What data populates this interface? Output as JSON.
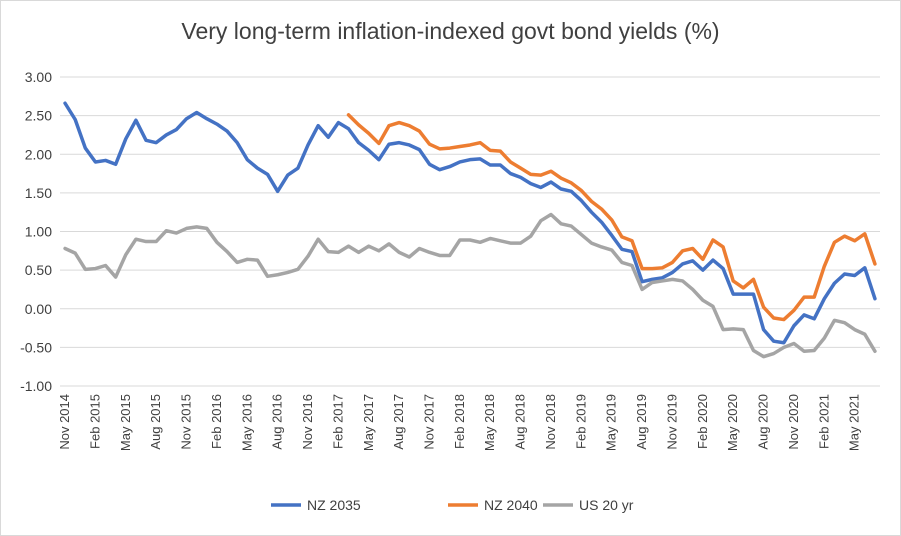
{
  "chart_data": {
    "type": "line",
    "title": "Very long-term inflation-indexed govt bond yields (%)",
    "xlabel": "",
    "ylabel": "",
    "ylim": [
      -1.0,
      3.0
    ],
    "y_ticks": [
      "3.00",
      "2.50",
      "2.00",
      "1.50",
      "1.00",
      "0.50",
      "0.00",
      "-0.50",
      "-1.00"
    ],
    "y_tick_values": [
      3.0,
      2.5,
      2.0,
      1.5,
      1.0,
      0.5,
      0.0,
      -0.5,
      -1.0
    ],
    "x_tick_labels": [
      "Nov 2014",
      "Feb 2015",
      "May 2015",
      "Aug 2015",
      "Nov 2015",
      "Feb 2016",
      "May 2016",
      "Aug 2016",
      "Nov 2016",
      "Feb 2017",
      "May 2017",
      "Aug 2017",
      "Nov 2017",
      "Feb 2018",
      "May 2018",
      "Aug 2018",
      "Nov 2018",
      "Feb 2019",
      "May 2019",
      "Aug 2019",
      "Nov 2019",
      "Feb 2020",
      "May 2020",
      "Aug 2020",
      "Nov 2020",
      "Feb 2021",
      "May 2021"
    ],
    "x_tick_month_index": [
      0,
      3,
      6,
      9,
      12,
      15,
      18,
      21,
      24,
      27,
      30,
      33,
      36,
      39,
      42,
      45,
      48,
      51,
      54,
      57,
      60,
      63,
      66,
      69,
      72,
      75,
      78
    ],
    "n_months": 81,
    "gridlines": true,
    "legend_position": "bottom",
    "series": [
      {
        "name": "NZ 2035",
        "color": "#4472c4",
        "start_index": 0,
        "values": [
          2.66,
          2.45,
          2.08,
          1.9,
          1.92,
          1.87,
          2.2,
          2.44,
          2.18,
          2.15,
          2.25,
          2.32,
          2.46,
          2.54,
          2.46,
          2.39,
          2.3,
          2.15,
          1.93,
          1.82,
          1.74,
          1.52,
          1.73,
          1.82,
          2.12,
          2.37,
          2.22,
          2.41,
          2.33,
          2.15,
          2.05,
          1.93,
          2.13,
          2.15,
          2.12,
          2.06,
          1.87,
          1.8,
          1.84,
          1.9,
          1.93,
          1.94,
          1.86,
          1.86,
          1.75,
          1.7,
          1.62,
          1.57,
          1.64,
          1.55,
          1.52,
          1.4,
          1.25,
          1.12,
          0.95,
          0.77,
          0.74,
          0.35,
          0.38,
          0.4,
          0.47,
          0.58,
          0.62,
          0.5,
          0.63,
          0.52,
          0.19,
          0.19,
          0.19,
          -0.27,
          -0.42,
          -0.44,
          -0.22,
          -0.08,
          -0.13,
          0.13,
          0.33,
          0.45,
          0.43,
          0.53,
          0.13
        ]
      },
      {
        "name": "NZ 2040",
        "color": "#ed7d31",
        "start_index": 28,
        "values": [
          2.51,
          2.38,
          2.27,
          2.14,
          2.37,
          2.41,
          2.37,
          2.3,
          2.13,
          2.07,
          2.08,
          2.1,
          2.12,
          2.15,
          2.05,
          2.04,
          1.9,
          1.82,
          1.74,
          1.73,
          1.78,
          1.69,
          1.63,
          1.53,
          1.39,
          1.29,
          1.15,
          0.93,
          0.88,
          0.52,
          0.52,
          0.53,
          0.6,
          0.75,
          0.78,
          0.64,
          0.89,
          0.8,
          0.36,
          0.27,
          0.38,
          0.02,
          -0.12,
          -0.14,
          -0.02,
          0.15,
          0.15,
          0.55,
          0.86,
          0.94,
          0.88,
          0.97,
          0.58
        ]
      },
      {
        "name": "US 20 yr",
        "color": "#a5a5a5",
        "start_index": 0,
        "values": [
          0.78,
          0.72,
          0.51,
          0.52,
          0.56,
          0.41,
          0.7,
          0.9,
          0.87,
          0.87,
          1.01,
          0.98,
          1.04,
          1.06,
          1.04,
          0.86,
          0.74,
          0.6,
          0.64,
          0.63,
          0.42,
          0.44,
          0.47,
          0.51,
          0.68,
          0.9,
          0.74,
          0.73,
          0.81,
          0.73,
          0.81,
          0.75,
          0.84,
          0.73,
          0.67,
          0.78,
          0.73,
          0.69,
          0.69,
          0.89,
          0.89,
          0.86,
          0.91,
          0.88,
          0.85,
          0.85,
          0.94,
          1.14,
          1.22,
          1.1,
          1.07,
          0.96,
          0.85,
          0.8,
          0.76,
          0.6,
          0.56,
          0.25,
          0.34,
          0.36,
          0.38,
          0.36,
          0.25,
          0.11,
          0.03,
          -0.27,
          -0.26,
          -0.27,
          -0.54,
          -0.62,
          -0.58,
          -0.5,
          -0.45,
          -0.55,
          -0.54,
          -0.38,
          -0.15,
          -0.18,
          -0.27,
          -0.33,
          -0.55
        ]
      }
    ]
  }
}
